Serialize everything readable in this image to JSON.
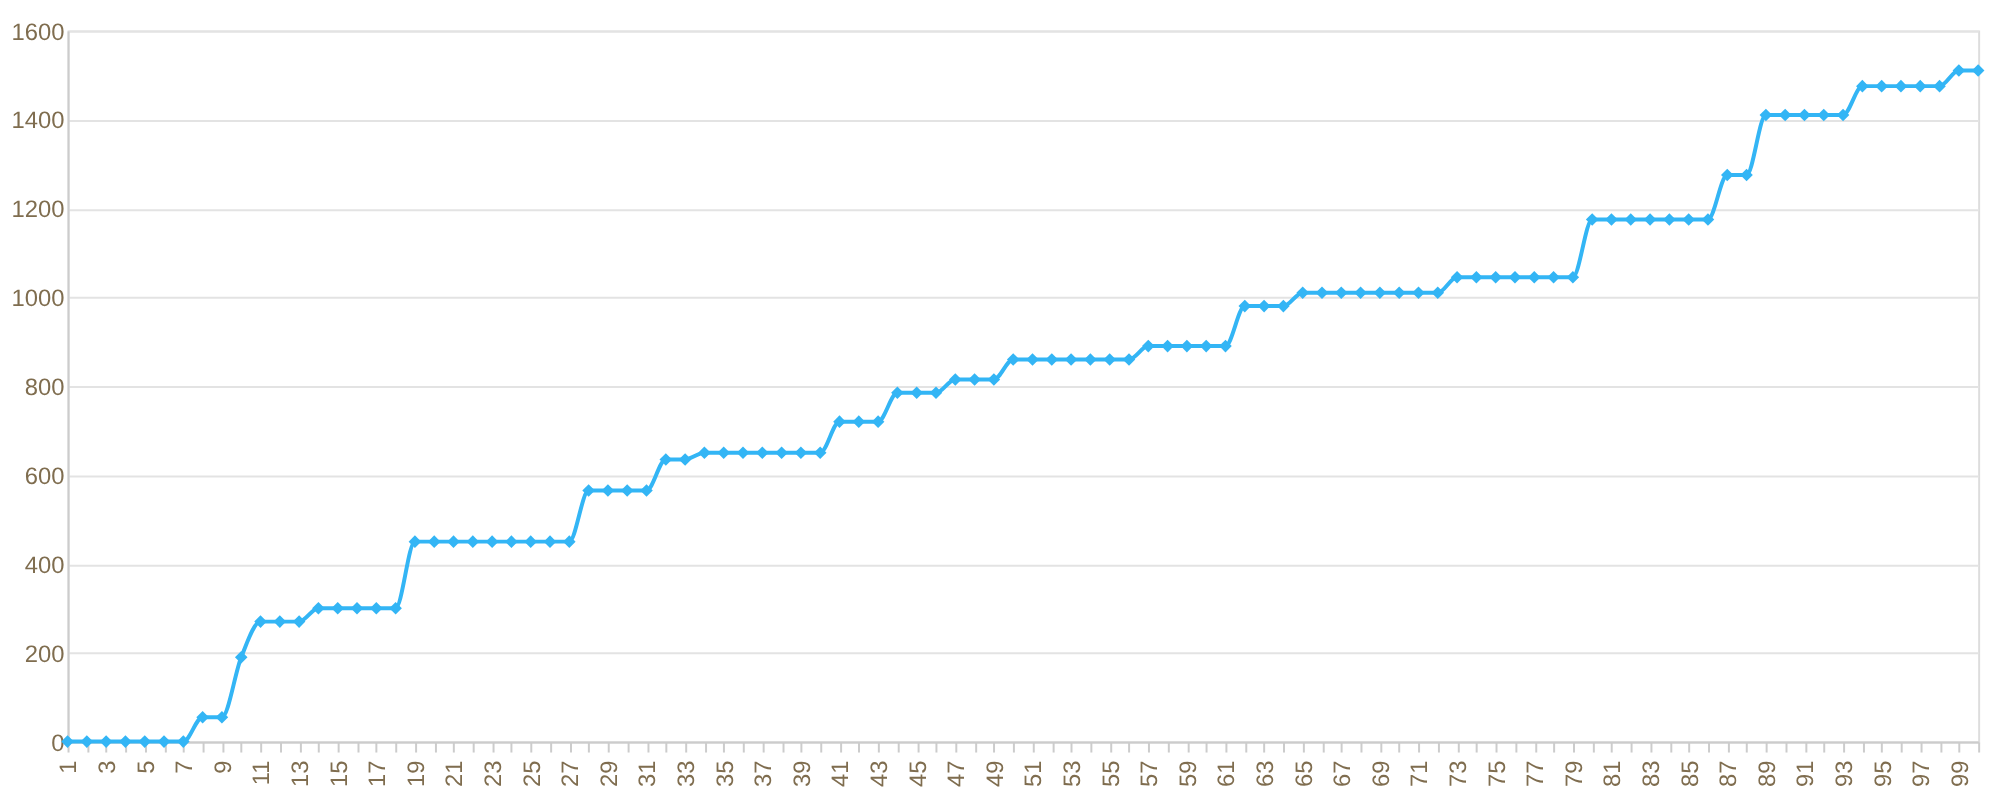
{
  "chart_data": {
    "type": "line",
    "categories": [
      "1",
      null,
      "3",
      null,
      "5",
      null,
      "7",
      null,
      "9",
      null,
      "11",
      null,
      "13",
      null,
      "15",
      null,
      "17",
      null,
      "19",
      null,
      "21",
      null,
      "23",
      null,
      "25",
      null,
      "27",
      null,
      "29",
      null,
      "31",
      null,
      "33",
      null,
      "35",
      null,
      "37",
      null,
      "39",
      null,
      "41",
      null,
      "43",
      null,
      "45",
      null,
      "47",
      null,
      "49",
      null,
      "51",
      null,
      "53",
      null,
      "55",
      null,
      "57",
      null,
      "59",
      null,
      "61",
      null,
      "63",
      null,
      "65",
      null,
      "67",
      null,
      "69",
      null,
      "71",
      null,
      "73",
      null,
      "75",
      null,
      "77",
      null,
      "79",
      null,
      "81",
      null,
      "83",
      null,
      "85",
      null,
      "87",
      null,
      "89",
      null,
      "91",
      null,
      "93",
      null,
      "95",
      null,
      "97",
      null,
      "99",
      null
    ],
    "series": [
      {
        "color": "#33b5f5",
        "values": [
          0,
          0,
          0,
          0,
          0,
          0,
          0,
          55,
          55,
          190,
          270,
          270,
          270,
          300,
          300,
          300,
          300,
          300,
          450,
          450,
          450,
          450,
          450,
          450,
          450,
          450,
          450,
          565,
          565,
          565,
          565,
          635,
          635,
          650,
          650,
          650,
          650,
          650,
          650,
          650,
          720,
          720,
          720,
          785,
          785,
          785,
          815,
          815,
          815,
          860,
          860,
          860,
          860,
          860,
          860,
          860,
          890,
          890,
          890,
          890,
          890,
          980,
          980,
          980,
          1010,
          1010,
          1010,
          1010,
          1010,
          1010,
          1010,
          1010,
          1045,
          1045,
          1045,
          1045,
          1045,
          1045,
          1045,
          1175,
          1175,
          1175,
          1175,
          1175,
          1175,
          1175,
          1275,
          1275,
          1410,
          1410,
          1410,
          1410,
          1410,
          1475,
          1475,
          1475,
          1475,
          1475,
          1510,
          1510
        ]
      }
    ],
    "ylim": [
      0,
      1600
    ],
    "yticks": [
      0,
      200,
      400,
      600,
      800,
      1000,
      1200,
      1400,
      1600
    ],
    "grid": "y",
    "marker": "diamond",
    "line_style": "solid"
  }
}
